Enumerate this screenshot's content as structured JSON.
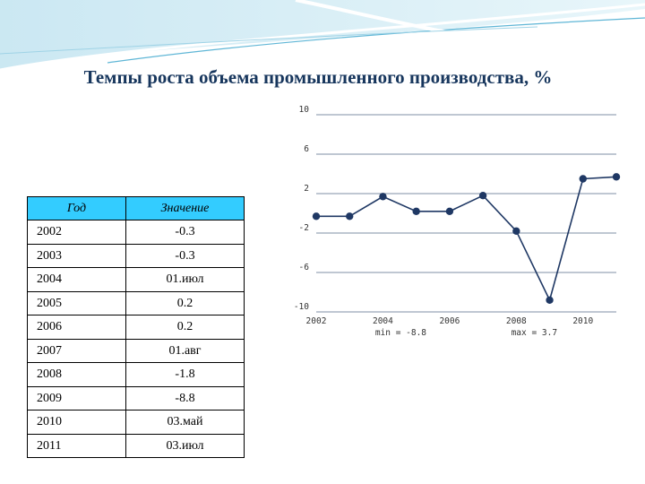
{
  "title": "Темпы роста объема промышленного производства, %",
  "table": {
    "headers": [
      "Год",
      "Значение"
    ],
    "rows": [
      [
        "2002",
        "-0.3"
      ],
      [
        "2003",
        "-0.3"
      ],
      [
        "2004",
        "01.июл"
      ],
      [
        "2005",
        "0.2"
      ],
      [
        "2006",
        "0.2"
      ],
      [
        "2007",
        "01.авг"
      ],
      [
        "2008",
        "-1.8"
      ],
      [
        "2009",
        "-8.8"
      ],
      [
        "2010",
        "03.май"
      ],
      [
        "2011",
        "03.июл"
      ]
    ]
  },
  "chart_data": {
    "type": "line",
    "x": [
      2002,
      2003,
      2004,
      2005,
      2006,
      2007,
      2008,
      2009,
      2010,
      2011
    ],
    "series": [
      {
        "values": [
          -0.3,
          -0.3,
          1.7,
          0.2,
          0.2,
          1.8,
          -1.8,
          -8.8,
          3.5,
          3.7
        ]
      }
    ],
    "xlim": [
      2002,
      2011
    ],
    "ylim": [
      -10,
      10
    ],
    "yticks": [
      "10",
      "6",
      "2",
      "-2",
      "-6",
      "-10"
    ],
    "xticks": [
      "2002",
      "2004",
      "2006",
      "2008",
      "2010"
    ],
    "annotations": [
      "min = -8.8",
      "max = 3.7"
    ],
    "grid": true,
    "line_color": "#1f3864",
    "grid_color": "#7f8fa6"
  }
}
